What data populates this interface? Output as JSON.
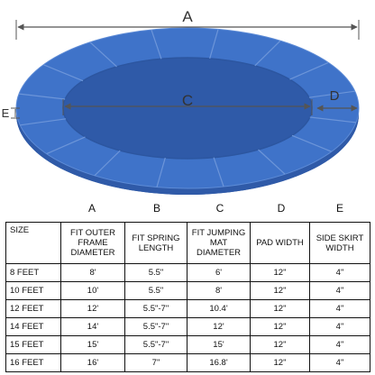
{
  "diagram": {
    "dimension_labels": [
      "A",
      "C",
      "D",
      "E"
    ],
    "ring_color": "#3f73c9",
    "ring_shadow_color": "#2f5aa8",
    "seam_color": "#6c95d9",
    "line_color": "#555555"
  },
  "table": {
    "column_letters": [
      "A",
      "B",
      "C",
      "D",
      "E"
    ],
    "headers": [
      "SIZE",
      "FIT OUTER FRAME DIAMETER",
      "FIT SPRING LENGTH",
      "FIT JUMPING MAT DIAMETER",
      "PAD WIDTH",
      "SIDE SKIRT WIDTH"
    ],
    "rows": [
      [
        "8 FEET",
        "8'",
        "5.5\"",
        "6'",
        "12\"",
        "4\""
      ],
      [
        "10 FEET",
        "10'",
        "5.5\"",
        "8'",
        "12\"",
        "4\""
      ],
      [
        "12 FEET",
        "12'",
        "5.5\"-7\"",
        "10.4'",
        "12\"",
        "4\""
      ],
      [
        "14 FEET",
        "14'",
        "5.5\"-7\"",
        "12'",
        "12\"",
        "4\""
      ],
      [
        "15 FEET",
        "15'",
        "5.5\"-7\"",
        "15'",
        "12\"",
        "4\""
      ],
      [
        "16 FEET",
        "16'",
        "7\"",
        "16.8'",
        "12\"",
        "4\""
      ]
    ]
  }
}
